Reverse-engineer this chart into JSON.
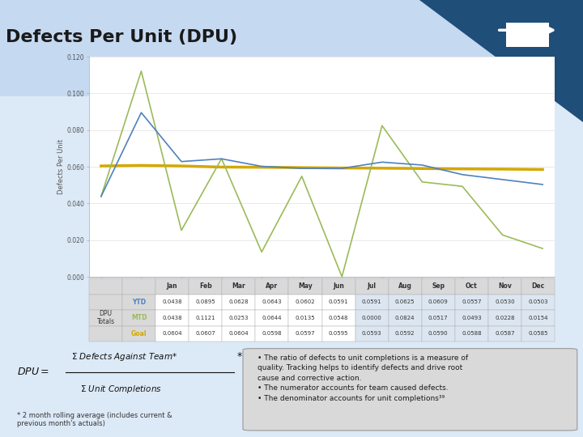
{
  "title": "Defects Per Unit (DPU)",
  "bg_top": "#dce9f7",
  "bg_bottom": "#c8d8ee",
  "months": [
    "Jan",
    "Feb",
    "Mar",
    "Apr",
    "May",
    "Jun",
    "Jul",
    "Aug",
    "Sep",
    "Oct",
    "Nov",
    "Dec"
  ],
  "ytd_values": [
    0.0438,
    0.0895,
    0.0628,
    0.0643,
    0.0602,
    0.0591,
    0.0591,
    0.0625,
    0.0609,
    0.0557,
    0.053,
    0.0503
  ],
  "mtd_values": [
    0.0438,
    0.1121,
    0.0253,
    0.0644,
    0.0135,
    0.0548,
    0.0,
    0.0824,
    0.0517,
    0.0493,
    0.0228,
    0.0154
  ],
  "goal_values": [
    0.0604,
    0.0607,
    0.0604,
    0.0598,
    0.0597,
    0.0595,
    0.0593,
    0.0592,
    0.059,
    0.0588,
    0.0587,
    0.0585
  ],
  "ytd_color": "#4f81bd",
  "mtd_color": "#9bbb59",
  "goal_color": "#d4a800",
  "ylabel": "Defects Per Unit",
  "ylim": [
    0.0,
    0.12
  ],
  "yticks": [
    0.0,
    0.02,
    0.04,
    0.06,
    0.08,
    0.1,
    0.12
  ],
  "table_ytd_color": "#4f81bd",
  "table_mtd_color": "#9bbb59",
  "table_goal_color": "#d4a800",
  "footnote": "* 2 month rolling average (includes current &\nprevious month's actuals)",
  "bullet1": "The ratio of defects to unit completions is a measure of\nquality. Tracking helps to identify defects and drive root\ncause and corrective action.",
  "bullet2": "The numerator accounts for team caused defects.",
  "bullet3": "The denominator accounts for unit completions³⁹",
  "chart_bg": "#ffffff",
  "chart_border": "#aaaaaa",
  "table_header_bg": "#d9d9d9",
  "table_white_bg": "#ffffff",
  "table_blue_bg": "#dce6f1",
  "table_row_label_bg": "#d9d9d9",
  "bullet_box_bg": "#d9d9d9",
  "bullet_box_border": "#999999"
}
